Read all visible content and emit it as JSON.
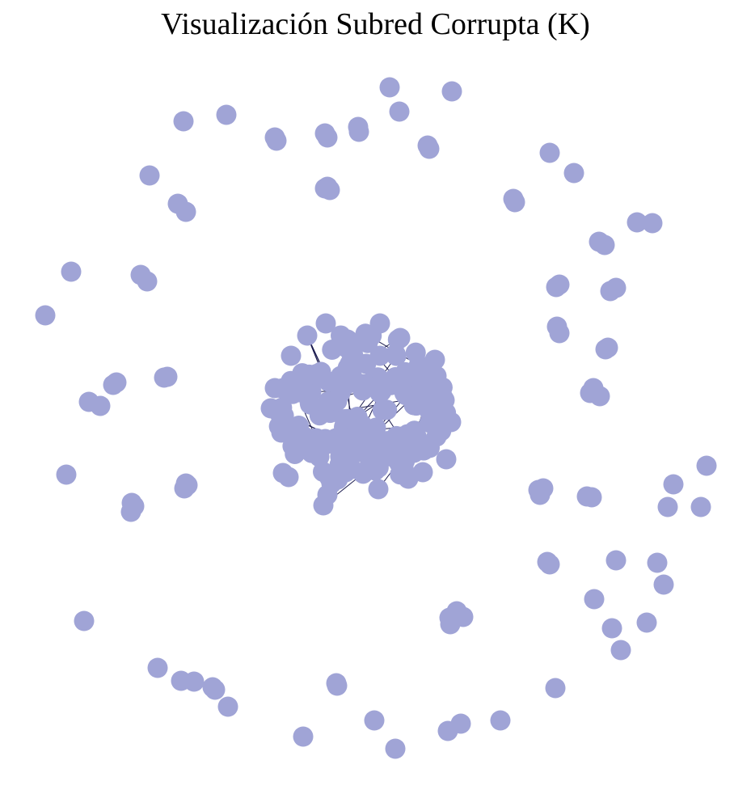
{
  "title": "Visualización Subred Corrupta (K)",
  "graph": {
    "node_color": "#a0a4d6",
    "edge_color": "#1a1a4e"
  }
}
